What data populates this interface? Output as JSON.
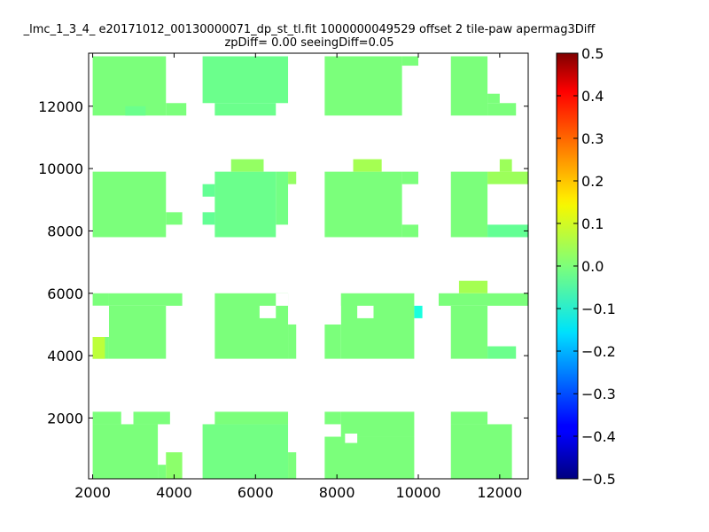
{
  "chart_data": {
    "type": "heatmap",
    "title_line1": "_lmc_1_3_4_ e20171012_00130000071_dp_st_tl.fit 1000000049529 offset 2 tile-paw apermag3Diff",
    "title_line2": "zpDiff= 0.00 seeingDiff=0.05",
    "xlabel": "",
    "ylabel": "",
    "xlim": [
      1900,
      12700
    ],
    "ylim": [
      50,
      13700
    ],
    "x_ticks": [
      2000,
      4000,
      6000,
      8000,
      10000,
      12000
    ],
    "x_tick_labels": [
      "2000",
      "4000",
      "6000",
      "8000",
      "10000",
      "12000"
    ],
    "y_ticks": [
      2000,
      4000,
      6000,
      8000,
      10000,
      12000
    ],
    "y_tick_labels": [
      "2000",
      "4000",
      "6000",
      "8000",
      "10000",
      "12000"
    ],
    "colorbar": {
      "colormap": "jet",
      "vmin": -0.5,
      "vmax": 0.5,
      "ticks": [
        0.5,
        0.4,
        0.3,
        0.2,
        0.1,
        0.0,
        -0.1,
        -0.2,
        -0.3,
        -0.4,
        -0.5
      ],
      "tick_labels": [
        "0.5",
        "0.4",
        "0.3",
        "0.2",
        "0.1",
        "0.0",
        "−0.1",
        "−0.2",
        "−0.3",
        "−0.4",
        "−0.5"
      ]
    },
    "cells": [
      {
        "x0": 2000,
        "x1": 3800,
        "y0": 11700,
        "y1": 13600,
        "value": 0.0
      },
      {
        "x0": 3800,
        "x1": 4300,
        "y0": 11700,
        "y1": 12100,
        "value": 0.0
      },
      {
        "x0": 2800,
        "x1": 3300,
        "y0": 11700,
        "y1": 12000,
        "value": -0.02
      },
      {
        "x0": 4700,
        "x1": 6800,
        "y0": 12100,
        "y1": 13600,
        "value": -0.02
      },
      {
        "x0": 5000,
        "x1": 6500,
        "y0": 11700,
        "y1": 12100,
        "value": -0.02
      },
      {
        "x0": 7700,
        "x1": 9600,
        "y0": 11700,
        "y1": 13600,
        "value": 0.0
      },
      {
        "x0": 9600,
        "x1": 10000,
        "y0": 13300,
        "y1": 13600,
        "value": 0.0
      },
      {
        "x0": 10800,
        "x1": 11700,
        "y0": 11700,
        "y1": 13600,
        "value": 0.0
      },
      {
        "x0": 11700,
        "x1": 12400,
        "y0": 11700,
        "y1": 12100,
        "value": 0.0
      },
      {
        "x0": 11700,
        "x1": 12000,
        "y0": 12100,
        "y1": 12400,
        "value": 0.0
      },
      {
        "x0": 2000,
        "x1": 3800,
        "y0": 7800,
        "y1": 9900,
        "value": 0.0
      },
      {
        "x0": 3800,
        "x1": 4200,
        "y0": 8200,
        "y1": 8600,
        "value": 0.0
      },
      {
        "x0": 4700,
        "x1": 5000,
        "y0": 9100,
        "y1": 9500,
        "value": -0.03
      },
      {
        "x0": 4700,
        "x1": 5000,
        "y0": 8200,
        "y1": 8600,
        "value": -0.03
      },
      {
        "x0": 5000,
        "x1": 6500,
        "y0": 7800,
        "y1": 9900,
        "value": -0.02
      },
      {
        "x0": 5400,
        "x1": 6200,
        "y0": 9900,
        "y1": 10300,
        "value": 0.03
      },
      {
        "x0": 6500,
        "x1": 6800,
        "y0": 8200,
        "y1": 9900,
        "value": -0.01
      },
      {
        "x0": 6800,
        "x1": 7000,
        "y0": 9500,
        "y1": 9900,
        "value": 0.03
      },
      {
        "x0": 7700,
        "x1": 9600,
        "y0": 7800,
        "y1": 9900,
        "value": 0.0
      },
      {
        "x0": 8400,
        "x1": 9100,
        "y0": 9900,
        "y1": 10300,
        "value": 0.05
      },
      {
        "x0": 9600,
        "x1": 10000,
        "y0": 7800,
        "y1": 8200,
        "value": 0.0
      },
      {
        "x0": 9600,
        "x1": 10000,
        "y0": 9500,
        "y1": 9900,
        "value": 0.0
      },
      {
        "x0": 10800,
        "x1": 11700,
        "y0": 7800,
        "y1": 9900,
        "value": 0.0
      },
      {
        "x0": 11700,
        "x1": 12700,
        "y0": 9500,
        "y1": 9900,
        "value": 0.04
      },
      {
        "x0": 12000,
        "x1": 12300,
        "y0": 9900,
        "y1": 10300,
        "value": 0.04
      },
      {
        "x0": 11700,
        "x1": 12700,
        "y0": 7800,
        "y1": 8200,
        "value": -0.03
      },
      {
        "x0": 2000,
        "x1": 2400,
        "y0": 5600,
        "y1": 6000,
        "value": 0.0
      },
      {
        "x0": 2400,
        "x1": 4200,
        "y0": 5600,
        "y1": 6000,
        "value": 0.0
      },
      {
        "x0": 2400,
        "x1": 3800,
        "y0": 3900,
        "y1": 5600,
        "value": 0.0
      },
      {
        "x0": 2000,
        "x1": 2400,
        "y0": 3900,
        "y1": 4600,
        "value": 0.0
      },
      {
        "x0": 2000,
        "x1": 2300,
        "y0": 3900,
        "y1": 4600,
        "value": 0.08
      },
      {
        "x0": 5000,
        "x1": 6800,
        "y0": 3900,
        "y1": 6000,
        "value": 0.0
      },
      {
        "x0": 6800,
        "x1": 7000,
        "y0": 3900,
        "y1": 5000,
        "value": 0.0
      },
      {
        "x0": 8100,
        "x1": 9900,
        "y0": 3900,
        "y1": 6000,
        "value": 0.0
      },
      {
        "x0": 7700,
        "x1": 8100,
        "y0": 3900,
        "y1": 5000,
        "value": 0.0
      },
      {
        "x0": 9900,
        "x1": 10100,
        "y0": 5200,
        "y1": 5600,
        "value": -0.12
      },
      {
        "x0": 10500,
        "x1": 12700,
        "y0": 5600,
        "y1": 6000,
        "value": 0.0
      },
      {
        "x0": 11000,
        "x1": 11700,
        "y0": 6000,
        "y1": 6400,
        "value": 0.05
      },
      {
        "x0": 10800,
        "x1": 11700,
        "y0": 3900,
        "y1": 5600,
        "value": 0.0
      },
      {
        "x0": 11700,
        "x1": 12400,
        "y0": 3900,
        "y1": 4300,
        "value": -0.02
      },
      {
        "x0": 2000,
        "x1": 2700,
        "y0": 1800,
        "y1": 2200,
        "value": 0.0
      },
      {
        "x0": 3000,
        "x1": 3900,
        "y0": 1800,
        "y1": 2200,
        "value": 0.0
      },
      {
        "x0": 2000,
        "x1": 3600,
        "y0": 50,
        "y1": 1800,
        "value": 0.0
      },
      {
        "x0": 3600,
        "x1": 3800,
        "y0": 50,
        "y1": 500,
        "value": 0.0
      },
      {
        "x0": 3800,
        "x1": 4200,
        "y0": 50,
        "y1": 900,
        "value": 0.02
      },
      {
        "x0": 4700,
        "x1": 6800,
        "y0": 50,
        "y1": 1800,
        "value": -0.01
      },
      {
        "x0": 5000,
        "x1": 6800,
        "y0": 1800,
        "y1": 2200,
        "value": 0.0
      },
      {
        "x0": 6800,
        "x1": 7000,
        "y0": 50,
        "y1": 900,
        "value": 0.0
      },
      {
        "x0": 7700,
        "x1": 9900,
        "y0": 50,
        "y1": 1400,
        "value": 0.0
      },
      {
        "x0": 8100,
        "x1": 9900,
        "y0": 1400,
        "y1": 2200,
        "value": 0.0
      },
      {
        "x0": 7700,
        "x1": 8100,
        "y0": 1800,
        "y1": 2200,
        "value": 0.0
      },
      {
        "x0": 10800,
        "x1": 12300,
        "y0": 50,
        "y1": 1800,
        "value": 0.0
      },
      {
        "x0": 10800,
        "x1": 11700,
        "y0": 1800,
        "y1": 2200,
        "value": 0.0
      }
    ],
    "white_gaps": [
      {
        "x0": 7700,
        "x1": 8100,
        "y0": 5000,
        "y1": 5600
      },
      {
        "x0": 2000,
        "x1": 2400,
        "y0": 4600,
        "y1": 5600
      },
      {
        "x0": 6100,
        "x1": 6500,
        "y0": 5200,
        "y1": 5600
      },
      {
        "x0": 8500,
        "x1": 8900,
        "y0": 5200,
        "y1": 5600
      },
      {
        "x0": 6500,
        "x1": 6800,
        "y0": 5600,
        "y1": 6000
      },
      {
        "x0": 8200,
        "x1": 8500,
        "y0": 1200,
        "y1": 1500
      }
    ]
  }
}
